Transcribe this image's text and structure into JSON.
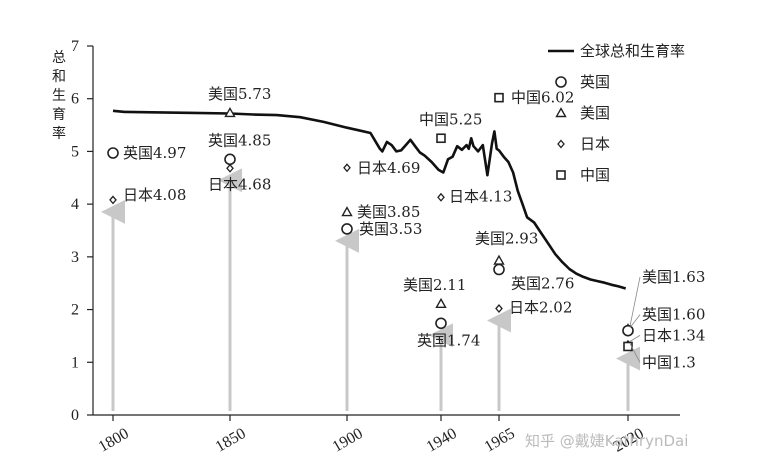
{
  "chart_data": {
    "type": "line",
    "ylabel": "总和生育率",
    "ylim": [
      0,
      7
    ],
    "yticks": [
      "0",
      "1",
      "2",
      "3",
      "4",
      "5",
      "6",
      "7"
    ],
    "xlim": [
      1790,
      2030
    ],
    "xticks": [
      "1800",
      "1850",
      "1900",
      "1940",
      "1965",
      "2020"
    ],
    "series": [
      {
        "name": "全球总和生育率",
        "color": "#111111",
        "points": [
          [
            1800,
            5.77
          ],
          [
            1805,
            5.75
          ],
          [
            1820,
            5.74
          ],
          [
            1835,
            5.73
          ],
          [
            1850,
            5.72
          ],
          [
            1860,
            5.7
          ],
          [
            1870,
            5.69
          ],
          [
            1880,
            5.65
          ],
          [
            1890,
            5.56
          ],
          [
            1900,
            5.45
          ],
          [
            1905,
            5.4
          ],
          [
            1910,
            5.35
          ],
          [
            1912,
            5.2
          ],
          [
            1914,
            5.05
          ],
          [
            1915,
            5.0
          ],
          [
            1917,
            5.18
          ],
          [
            1919,
            5.12
          ],
          [
            1921,
            5.0
          ],
          [
            1923,
            5.02
          ],
          [
            1925,
            5.12
          ],
          [
            1927,
            5.22
          ],
          [
            1929,
            5.1
          ],
          [
            1931,
            4.98
          ],
          [
            1933,
            4.92
          ],
          [
            1936,
            4.8
          ],
          [
            1939,
            4.65
          ],
          [
            1941,
            4.6
          ],
          [
            1943,
            4.85
          ],
          [
            1945,
            4.9
          ],
          [
            1947,
            5.1
          ],
          [
            1949,
            5.03
          ],
          [
            1951,
            5.12
          ],
          [
            1952,
            5.05
          ],
          [
            1953,
            5.25
          ],
          [
            1954,
            5.1
          ],
          [
            1956,
            5.0
          ],
          [
            1958,
            5.12
          ],
          [
            1960,
            4.55
          ],
          [
            1962,
            5.15
          ],
          [
            1963,
            5.38
          ],
          [
            1964,
            5.05
          ],
          [
            1965,
            5.02
          ],
          [
            1967,
            4.9
          ],
          [
            1969,
            4.8
          ],
          [
            1971,
            4.6
          ],
          [
            1973,
            4.25
          ],
          [
            1975,
            4.0
          ],
          [
            1977,
            3.75
          ],
          [
            1980,
            3.65
          ],
          [
            1983,
            3.45
          ],
          [
            1986,
            3.25
          ],
          [
            1989,
            3.05
          ],
          [
            1992,
            2.9
          ],
          [
            1995,
            2.77
          ],
          [
            1998,
            2.68
          ],
          [
            2001,
            2.62
          ],
          [
            2004,
            2.57
          ],
          [
            2007,
            2.54
          ],
          [
            2010,
            2.51
          ],
          [
            2013,
            2.47
          ],
          [
            2016,
            2.44
          ],
          [
            2019,
            2.4
          ]
        ]
      }
    ],
    "markers": [
      {
        "country": "英国",
        "symbol": "circle",
        "year": 1800,
        "value": 4.97,
        "label": "英国4.97"
      },
      {
        "country": "日本",
        "symbol": "diamond",
        "year": 1800,
        "value": 4.08,
        "label": "日本4.08"
      },
      {
        "country": "美国",
        "symbol": "triangle",
        "year": 1850,
        "value": 5.73,
        "label": "美国5.73"
      },
      {
        "country": "英国",
        "symbol": "circle",
        "year": 1850,
        "value": 4.85,
        "label": "英国4.85"
      },
      {
        "country": "日本",
        "symbol": "diamond",
        "year": 1850,
        "value": 4.68,
        "label": "日本4.68"
      },
      {
        "country": "日本",
        "symbol": "diamond",
        "year": 1900,
        "value": 4.69,
        "label": "日本4.69"
      },
      {
        "country": "美国",
        "symbol": "triangle",
        "year": 1900,
        "value": 3.85,
        "label": "美国3.85"
      },
      {
        "country": "英国",
        "symbol": "circle",
        "year": 1900,
        "value": 3.53,
        "label": "英国3.53"
      },
      {
        "country": "中国",
        "symbol": "square",
        "year": 1940,
        "value": 5.25,
        "label": "中国5.25"
      },
      {
        "country": "日本",
        "symbol": "diamond",
        "year": 1940,
        "value": 4.13,
        "label": "日本4.13"
      },
      {
        "country": "美国",
        "symbol": "triangle",
        "year": 1940,
        "value": 2.11,
        "label": "美国2.11"
      },
      {
        "country": "英国",
        "symbol": "circle",
        "year": 1940,
        "value": 1.74,
        "label": "英国1.74"
      },
      {
        "country": "中国",
        "symbol": "square",
        "year": 1965,
        "value": 6.02,
        "label": "中国6.02"
      },
      {
        "country": "美国",
        "symbol": "triangle",
        "year": 1965,
        "value": 2.93,
        "label": "美国2.93"
      },
      {
        "country": "英国",
        "symbol": "circle",
        "year": 1965,
        "value": 2.76,
        "label": "英国2.76"
      },
      {
        "country": "日本",
        "symbol": "diamond",
        "year": 1965,
        "value": 2.02,
        "label": "日本2.02"
      },
      {
        "country": "美国",
        "symbol": "triangle",
        "year": 2020,
        "value": 1.63,
        "label": "美国1.63"
      },
      {
        "country": "英国",
        "symbol": "circle",
        "year": 2020,
        "value": 1.6,
        "label": "英国1.60"
      },
      {
        "country": "日本",
        "symbol": "diamond",
        "year": 2020,
        "value": 1.34,
        "label": "日本1.34"
      },
      {
        "country": "中国",
        "symbol": "square",
        "year": 2020,
        "value": 1.3,
        "label": "中国1.3"
      }
    ],
    "arrows": [
      {
        "year": 1800,
        "to": 4.08
      },
      {
        "year": 1850,
        "to": 4.68
      },
      {
        "year": 1900,
        "to": 3.53
      },
      {
        "year": 1940,
        "to": 1.74
      },
      {
        "year": 1965,
        "to": 2.02
      },
      {
        "year": 2020,
        "to": 1.3
      }
    ],
    "legend": {
      "position": "top-right",
      "items": [
        {
          "symbol": "line",
          "label": "全球总和生育率"
        },
        {
          "symbol": "circle",
          "label": "英国"
        },
        {
          "symbol": "triangle",
          "label": "美国"
        },
        {
          "symbol": "diamond",
          "label": "日本"
        },
        {
          "symbol": "square",
          "label": "中国"
        }
      ]
    },
    "arrow_color": "#c8c8c8",
    "grid": false
  },
  "watermark": "知乎 @戴婕KathrynDai"
}
